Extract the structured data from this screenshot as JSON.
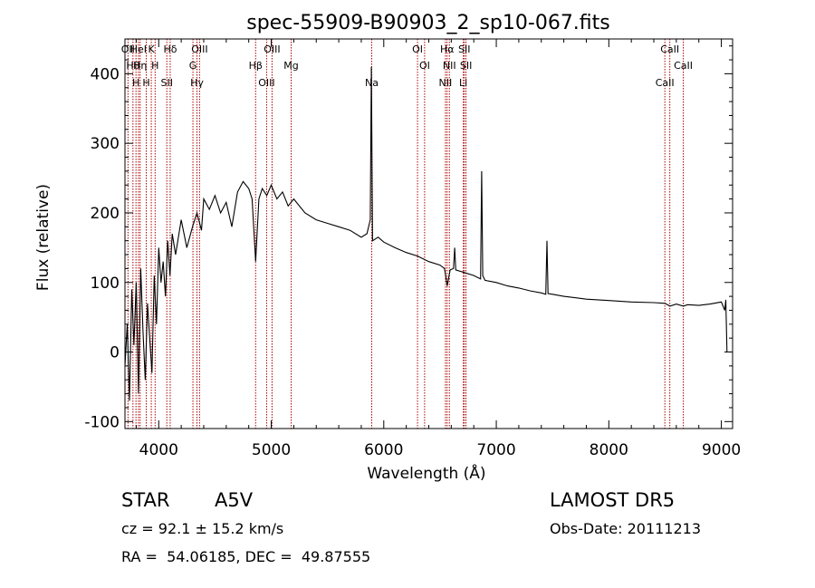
{
  "chart_data": {
    "type": "line",
    "title": "spec-55909-B90903_2_sp10-067.fits",
    "xlabel": "Wavelength (Å)",
    "ylabel": "Flux (relative)",
    "xlim": [
      3700,
      9100
    ],
    "ylim": [
      -110,
      450
    ],
    "x_ticks": [
      4000,
      5000,
      6000,
      7000,
      8000,
      9000
    ],
    "y_ticks": [
      -100,
      0,
      100,
      200,
      300,
      400
    ],
    "line_color": "#000000",
    "marker_color": "#aa0000",
    "grid": false,
    "series": [
      {
        "x": [
          3700,
          3720,
          3740,
          3760,
          3780,
          3800,
          3820,
          3840,
          3860,
          3880,
          3900,
          3920,
          3940,
          3960,
          3980,
          4000,
          4020,
          4040,
          4060,
          4080,
          4100,
          4120,
          4150,
          4200,
          4250,
          4300,
          4340,
          4380,
          4400,
          4450,
          4500,
          4550,
          4600,
          4650,
          4700,
          4750,
          4800,
          4830,
          4861,
          4890,
          4920,
          4960,
          5000,
          5050,
          5100,
          5150,
          5200,
          5300,
          5400,
          5500,
          5600,
          5700,
          5800,
          5850,
          5880,
          5890,
          5900,
          5950,
          6000,
          6100,
          6200,
          6300,
          6400,
          6500,
          6540,
          6563,
          6590,
          6620,
          6630,
          6640,
          6700,
          6800,
          6860,
          6870,
          6880,
          6900,
          7000,
          7100,
          7200,
          7300,
          7400,
          7440,
          7450,
          7460,
          7500,
          7600,
          7700,
          7800,
          8000,
          8200,
          8400,
          8500,
          8542,
          8600,
          8662,
          8700,
          8800,
          8900,
          9000,
          9030,
          9040,
          9050
        ],
        "values": [
          -20,
          40,
          -70,
          90,
          10,
          100,
          -60,
          120,
          30,
          -40,
          70,
          20,
          -30,
          110,
          40,
          150,
          100,
          130,
          80,
          160,
          110,
          170,
          140,
          190,
          150,
          180,
          200,
          175,
          220,
          205,
          225,
          200,
          215,
          180,
          230,
          245,
          235,
          220,
          130,
          220,
          235,
          225,
          240,
          220,
          230,
          210,
          220,
          200,
          190,
          185,
          180,
          175,
          165,
          170,
          190,
          410,
          160,
          165,
          158,
          150,
          143,
          138,
          130,
          125,
          120,
          95,
          118,
          120,
          150,
          118,
          115,
          110,
          105,
          260,
          110,
          103,
          100,
          95,
          92,
          88,
          85,
          83,
          160,
          84,
          83,
          80,
          78,
          76,
          74,
          72,
          71,
          70,
          66,
          69,
          66,
          68,
          67,
          69,
          72,
          60,
          75,
          0
        ]
      }
    ],
    "lines": [
      {
        "wl": 3727,
        "label": "OII"
      },
      {
        "wl": 3771,
        "label": "Hθ"
      },
      {
        "wl": 3798,
        "label": "H"
      },
      {
        "wl": 3820,
        "label": "HeI"
      },
      {
        "wl": 3835,
        "label": "Hη"
      },
      {
        "wl": 3889,
        "label": "H"
      },
      {
        "wl": 3934,
        "label": "K"
      },
      {
        "wl": 3968,
        "label": "H"
      },
      {
        "wl": 4072,
        "label": "SII"
      },
      {
        "wl": 4102,
        "label": "Hδ"
      },
      {
        "wl": 4304,
        "label": "G"
      },
      {
        "wl": 4340,
        "label": "Hγ"
      },
      {
        "wl": 4363,
        "label": "OIII"
      },
      {
        "wl": 4861,
        "label": "Hβ"
      },
      {
        "wl": 4959,
        "label": "OIII"
      },
      {
        "wl": 5007,
        "label": "OIII"
      },
      {
        "wl": 5177,
        "label": "Mg"
      },
      {
        "wl": 5893,
        "label": "Na"
      },
      {
        "wl": 6300,
        "label": "OI"
      },
      {
        "wl": 6363,
        "label": "OI"
      },
      {
        "wl": 6548,
        "label": "NII"
      },
      {
        "wl": 6563,
        "label": "Hα"
      },
      {
        "wl": 6583,
        "label": "NII"
      },
      {
        "wl": 6707,
        "label": "Li"
      },
      {
        "wl": 6716,
        "label": "SII"
      },
      {
        "wl": 6731,
        "label": "SII"
      },
      {
        "wl": 8498,
        "label": "CaII"
      },
      {
        "wl": 8542,
        "label": "CaII"
      },
      {
        "wl": 8662,
        "label": "CaII"
      }
    ]
  },
  "info": {
    "class": "STAR",
    "subclass": "A5V",
    "survey": "LAMOST DR5",
    "cz": "cz = 92.1 ± 15.2 km/s",
    "obs_date": "Obs-Date: 20111213",
    "radec": "RA =  54.06185, DEC =  49.87555"
  }
}
